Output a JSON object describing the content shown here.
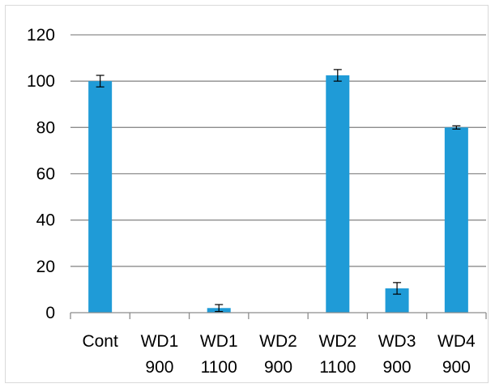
{
  "chart_data": {
    "type": "bar",
    "title": "",
    "xlabel": "",
    "ylabel": "",
    "categories": [
      [
        "Cont",
        ""
      ],
      [
        "WD1",
        "900"
      ],
      [
        "WD1",
        "1100"
      ],
      [
        "WD2",
        "900"
      ],
      [
        "WD2",
        "1100"
      ],
      [
        "WD3",
        "900"
      ],
      [
        "WD4",
        "900"
      ]
    ],
    "values": [
      100,
      0,
      2,
      0,
      102.5,
      10.5,
      80
    ],
    "error": [
      2.5,
      0,
      1.5,
      0,
      2.5,
      2.5,
      0.7
    ],
    "ylim": [
      0,
      120
    ],
    "yticks": [
      0,
      20,
      40,
      60,
      80,
      100,
      120
    ],
    "grid": true,
    "bar_color": "#1f9bd7",
    "grid_color": "#8c8c8c",
    "legend": "none"
  }
}
